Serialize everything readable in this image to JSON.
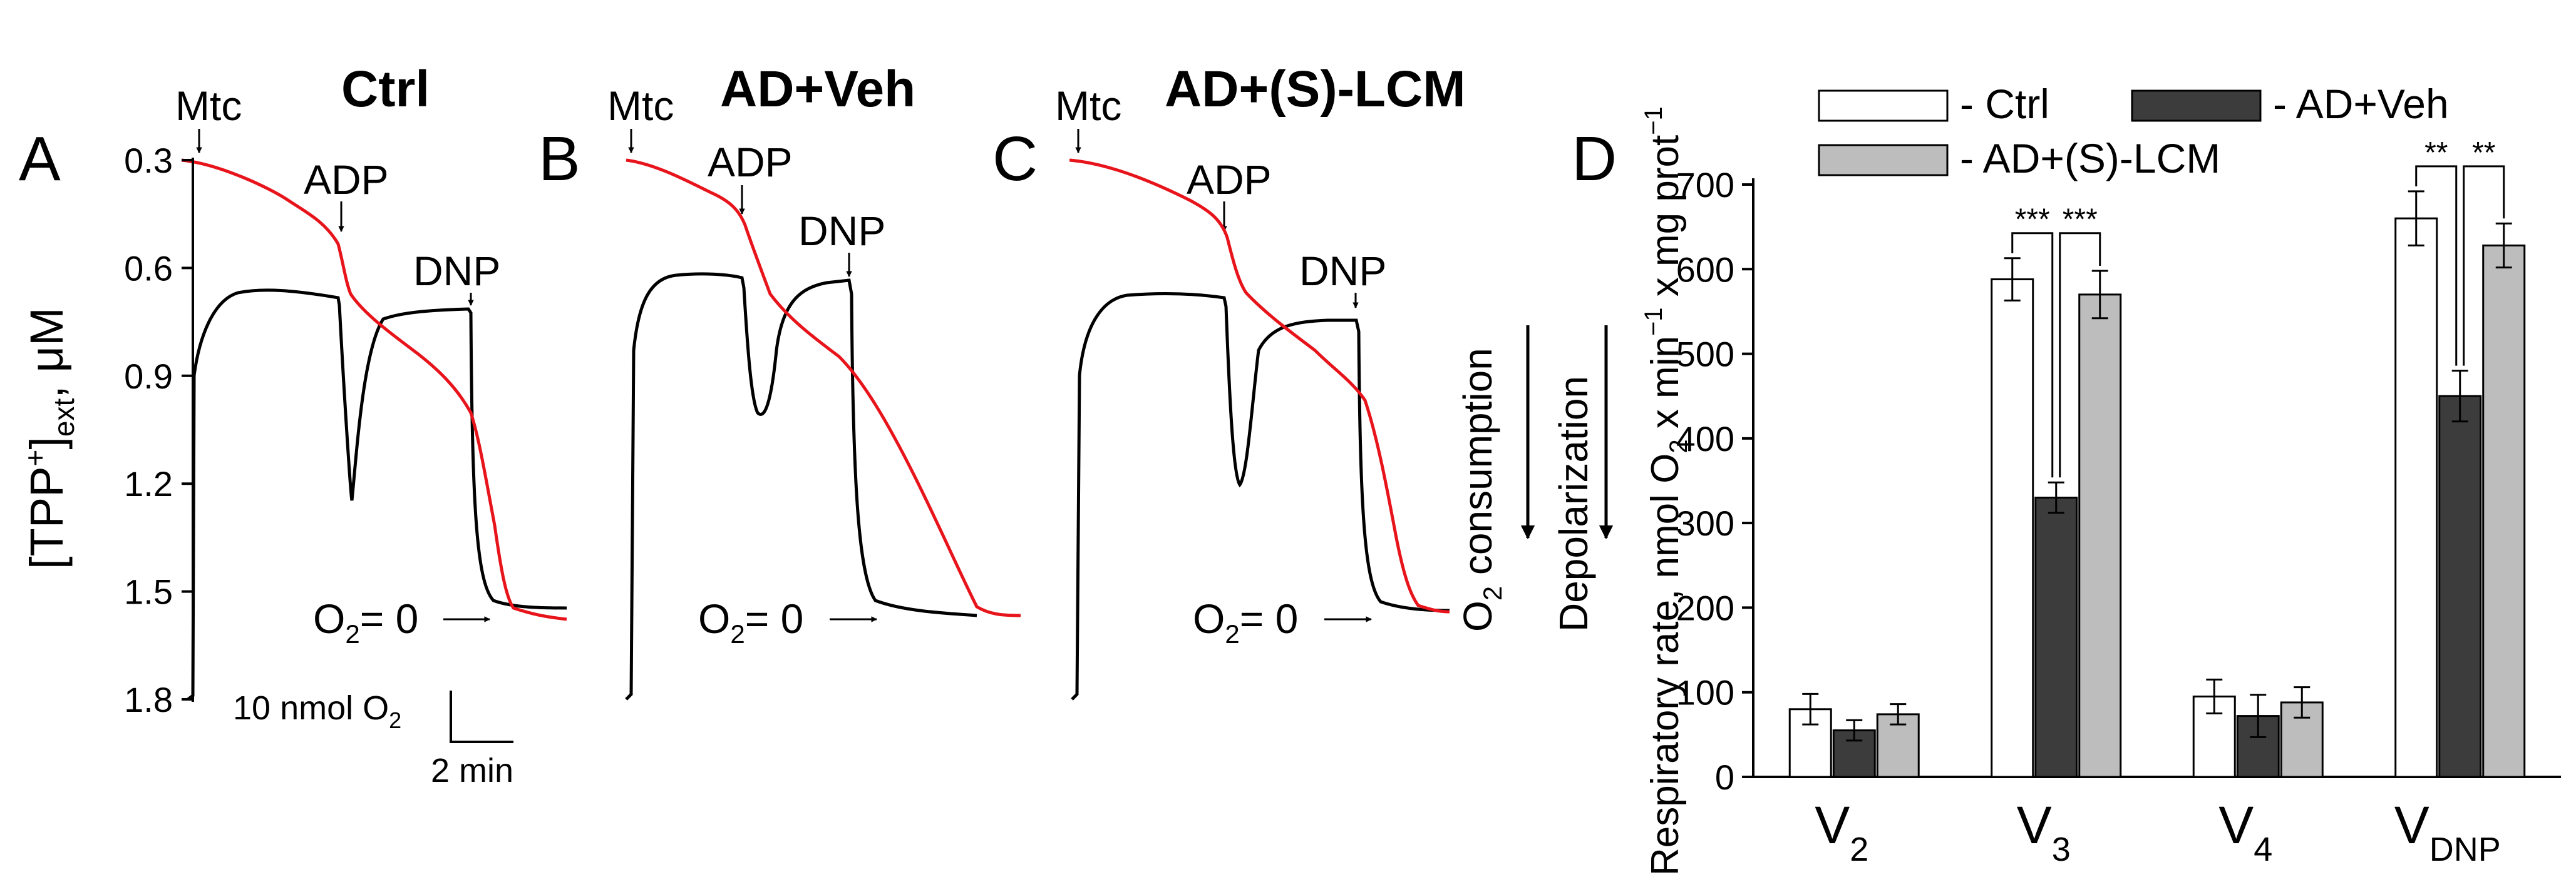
{
  "colors": {
    "o2_trace": "#e8141b",
    "tpp_trace": "#000000",
    "ctrl_fill": "#ffffff",
    "adveh_fill": "#3c3c3c",
    "lcm_fill": "#bdbdbd"
  },
  "traces_panels": [
    {
      "letter": "A",
      "title": "Ctrl",
      "mtc": "Mtc",
      "adp": "ADP",
      "dnp": "DNP",
      "o2_zero": {
        "o": "O",
        "sub": "2",
        "eq": "= 0"
      }
    },
    {
      "letter": "B",
      "title": "AD+Veh",
      "mtc": "Mtc",
      "adp": "ADP",
      "dnp": "DNP",
      "o2_zero": {
        "o": "O",
        "sub": "2",
        "eq": "= 0"
      }
    },
    {
      "letter": "C",
      "title": "AD+(S)-LCM",
      "mtc": "Mtc",
      "adp": "ADP",
      "dnp": "DNP",
      "o2_zero": {
        "o": "O",
        "sub": "2",
        "eq": "= 0"
      }
    }
  ],
  "tpp_axis": {
    "ticks": [
      "0.3",
      "0.6",
      "0.9",
      "1.2",
      "1.5",
      "1.8"
    ],
    "label": {
      "pre": "[TPP",
      "sup": "+",
      "post": "]",
      "sub": "ext",
      "unit": ", μM"
    }
  },
  "scale_bar": {
    "o2_label": {
      "pre": "10 nmol O",
      "sub": "2"
    },
    "time_label": "2 min"
  },
  "direction_arrows": {
    "o2": {
      "o": "O",
      "sub": "2",
      "rest": " consumption"
    },
    "depol": "Depolarization"
  },
  "chart_data": {
    "type": "bar",
    "letter": "D",
    "categories": [
      {
        "main": "V",
        "sub": "2"
      },
      {
        "main": "V",
        "sub": "3"
      },
      {
        "main": "V",
        "sub": "4"
      },
      {
        "main": "V",
        "sub": "DNP"
      }
    ],
    "ylim": [
      0,
      700
    ],
    "yticks": [
      "0",
      "100",
      "200",
      "300",
      "400",
      "500",
      "600",
      "700"
    ],
    "ylabel": {
      "pre": "Respiratory rate, nmol O",
      "sub2": "2",
      "mid1": " x min",
      "sup1": "−1",
      "mid2": " x mg prot",
      "sup2": "−1"
    },
    "series": [
      {
        "name": "- Ctrl",
        "values": [
          80,
          588,
          95,
          660
        ],
        "errors": [
          18,
          25,
          20,
          32
        ]
      },
      {
        "name": "- AD+Veh",
        "values": [
          55,
          330,
          72,
          450
        ],
        "errors": [
          12,
          18,
          25,
          30
        ]
      },
      {
        "name": "- AD+(S)-LCM",
        "values": [
          74,
          570,
          88,
          628
        ],
        "errors": [
          12,
          28,
          18,
          26
        ]
      }
    ],
    "significance": [
      {
        "category": 1,
        "left": "***",
        "right": "***"
      },
      {
        "category": 3,
        "left": "**",
        "right": "**"
      }
    ]
  }
}
